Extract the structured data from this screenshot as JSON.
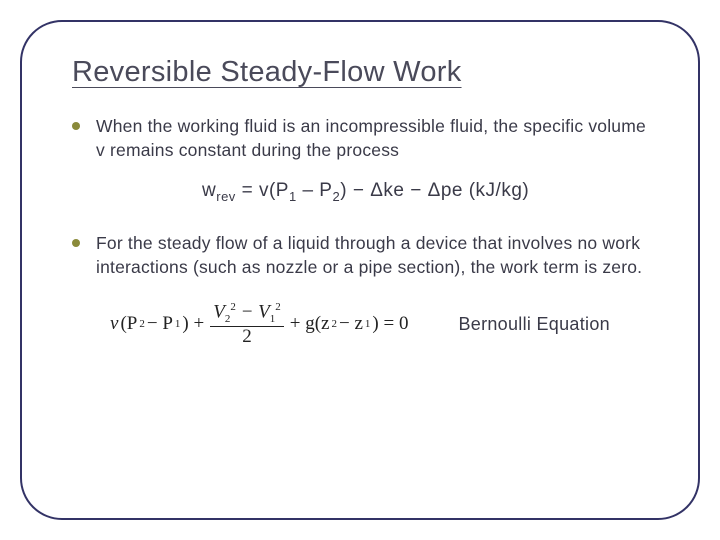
{
  "colors": {
    "frame_border": "#333366",
    "title_color": "#4a4a5a",
    "body_text": "#3a3a48",
    "bullet_dot": "#8a8a3a",
    "equation_serif": "#222222",
    "background": "#ffffff"
  },
  "typography": {
    "title_fontsize": 29,
    "body_fontsize": 17.5,
    "equation_fontsize": 19,
    "label_fontsize": 18,
    "font_family_body": "Arial",
    "font_family_math": "Times New Roman"
  },
  "title": "Reversible Steady-Flow Work",
  "bullets": [
    "When the working fluid is an incompressible fluid, the specific volume v remains constant during the process",
    "For the steady flow of a liquid through a device that involves no work interactions (such as nozzle or a pipe section), the work term is zero."
  ],
  "work_equation": {
    "lhs": "w",
    "lhs_sub": "rev",
    "eq": " = v(P",
    "p1_sub": "1",
    "mid1": " – P",
    "p2_sub": "2",
    "mid2": ") − Δke − Δpe  (kJ/kg)"
  },
  "bernoulli": {
    "nu": "ν",
    "open": "(P",
    "p2_sub": "2",
    "minus": " − P",
    "p1_sub": "1",
    "close": ") + ",
    "frac_num_left": "V",
    "frac_num_left_sub": "2",
    "frac_num_left_sup": "2",
    "frac_num_mid": " − V",
    "frac_num_right_sub": "1",
    "frac_num_right_sup": "2",
    "frac_den": "2",
    "plus_g": " + g(z",
    "z2_sub": "2",
    "minus_z": " − z",
    "z1_sub": "1",
    "tail": ") = 0"
  },
  "bernoulli_label": "Bernoulli Equation"
}
